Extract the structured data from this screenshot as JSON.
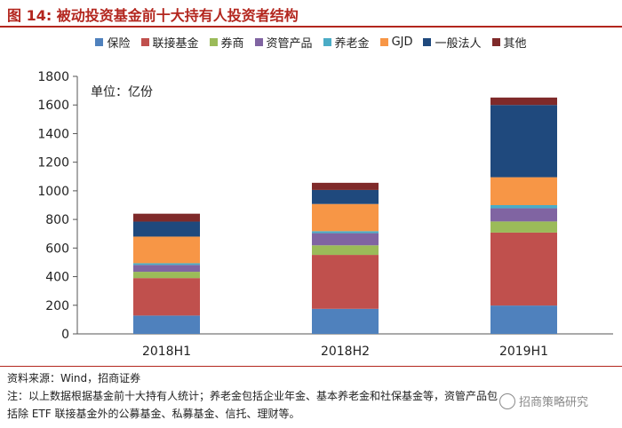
{
  "figure": {
    "title": "图 14:  被动投资基金前十大持有人投资者结构"
  },
  "source": "资料来源：Wind，招商证券",
  "note": "注：以上数据根据基金前十大持有人统计；养老金包括企业年金、基本养老金和社保基金等，资管产品包括除 ETF 联接基金外的公募基金、私募基金、信托、理财等。",
  "watermark": "招商策略研究",
  "chart_data": {
    "type": "bar",
    "stacked": true,
    "title": "",
    "unit_label": "单位：亿份",
    "xlabel": "",
    "ylabel": "",
    "ylim": [
      0,
      1800
    ],
    "yticks": [
      0,
      200,
      400,
      600,
      800,
      1000,
      1200,
      1400,
      1600,
      1800
    ],
    "grid": false,
    "legend_position": "top",
    "categories": [
      "2018H1",
      "2018H2",
      "2019H1"
    ],
    "series": [
      {
        "name": "保险",
        "color": "#4f81bd",
        "values": [
          128,
          175,
          198
        ]
      },
      {
        "name": "联接基金",
        "color": "#c0504d",
        "values": [
          262,
          377,
          510
        ]
      },
      {
        "name": "券商",
        "color": "#9bbb59",
        "values": [
          44,
          67,
          78
        ]
      },
      {
        "name": "资管产品",
        "color": "#8064a2",
        "values": [
          48,
          85,
          92
        ]
      },
      {
        "name": "养老金",
        "color": "#4bacc6",
        "values": [
          12,
          14,
          22
        ]
      },
      {
        "name": "GJD",
        "color": "#f79646",
        "values": [
          186,
          190,
          195
        ]
      },
      {
        "name": "一般法人",
        "color": "#1f497d",
        "values": [
          105,
          98,
          505
        ]
      },
      {
        "name": "其他",
        "color": "#7f2a2a",
        "values": [
          55,
          50,
          52
        ]
      }
    ]
  }
}
